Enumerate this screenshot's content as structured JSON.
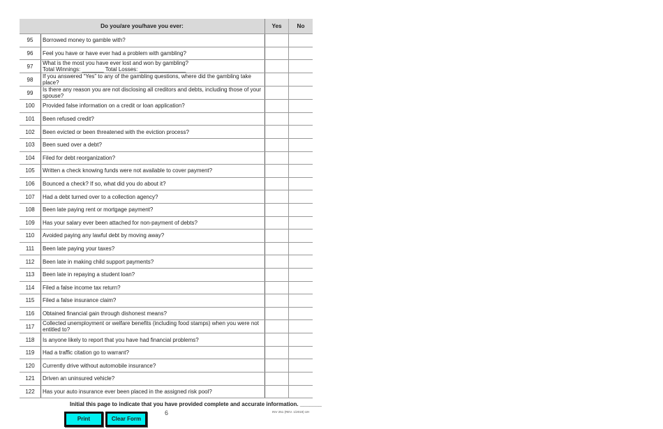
{
  "header": {
    "question": "Do you/are you/have you ever:",
    "yes": "Yes",
    "no": "No"
  },
  "rows": [
    {
      "n": "95",
      "q": "Borrowed money to gamble with?"
    },
    {
      "n": "96",
      "q": "Feel you have or have ever had a problem with gambling?"
    },
    {
      "n": "97",
      "q": "What is the most you have ever lost and won by gambling?",
      "q2": "Total Winnings: _______ Total Losses: _______________"
    },
    {
      "n": "98",
      "q": "If you answered “Yes” to any of the gambling questions, where did the gambling take place?"
    },
    {
      "n": "99",
      "q": "Is there any reason you are not disclosing all creditors and debts, including those of your spouse?"
    },
    {
      "n": "100",
      "q": "Provided false information on a credit or loan application?"
    },
    {
      "n": "101",
      "q": "Been refused credit?"
    },
    {
      "n": "102",
      "q": "Been evicted or been threatened with the eviction process?"
    },
    {
      "n": "103",
      "q": "Been sued over a debt?"
    },
    {
      "n": "104",
      "q": "Filed for debt reorganization?"
    },
    {
      "n": "105",
      "q": "Written a check knowing funds were not available to cover payment?"
    },
    {
      "n": "106",
      "q": "Bounced a check?  If so, what did you do about it?"
    },
    {
      "n": "107",
      "q": "Had a debt turned over to a collection agency?"
    },
    {
      "n": "108",
      "q": "Been late paying rent or mortgage payment?"
    },
    {
      "n": "109",
      "q": "Has your salary ever been attached for non-payment of debts?"
    },
    {
      "n": "110",
      "q": "Avoided paying any lawful debt by moving away?"
    },
    {
      "n": "111",
      "q": "Been late paying your taxes?"
    },
    {
      "n": "112",
      "q": "Been late in making child support payments?"
    },
    {
      "n": "113",
      "q": "Been late in repaying a student loan?"
    },
    {
      "n": "114",
      "q": "Filed a false income tax return?"
    },
    {
      "n": "115",
      "q": "Filed a false insurance claim?"
    },
    {
      "n": "116",
      "q": "Obtained financial gain through dishonest means?"
    },
    {
      "n": "117",
      "q": "Collected unemployment or welfare benefits (including food stamps) when you were not entitled to?"
    },
    {
      "n": "118",
      "q": "Is anyone likely to report that you have had financial problems?"
    },
    {
      "n": "119",
      "q": "Had a traffic citation go to warrant?"
    },
    {
      "n": "120",
      "q": "Currently drive without automobile insurance?"
    },
    {
      "n": "121",
      "q": "Driven an uninsured vehicle?"
    },
    {
      "n": "122",
      "q": "Has your auto insurance ever been placed in the assigned risk pool?"
    }
  ],
  "footer": {
    "initial": "Initial this page to indicate that you have provided complete and accurate information. _______",
    "print": "Print",
    "clear": "Clear Form",
    "page": "6",
    "rev": "INV 251 (REV. 1/2019) UH"
  },
  "colors": {
    "button": "#00f0f0",
    "header_bg": "#d9d9d9"
  }
}
